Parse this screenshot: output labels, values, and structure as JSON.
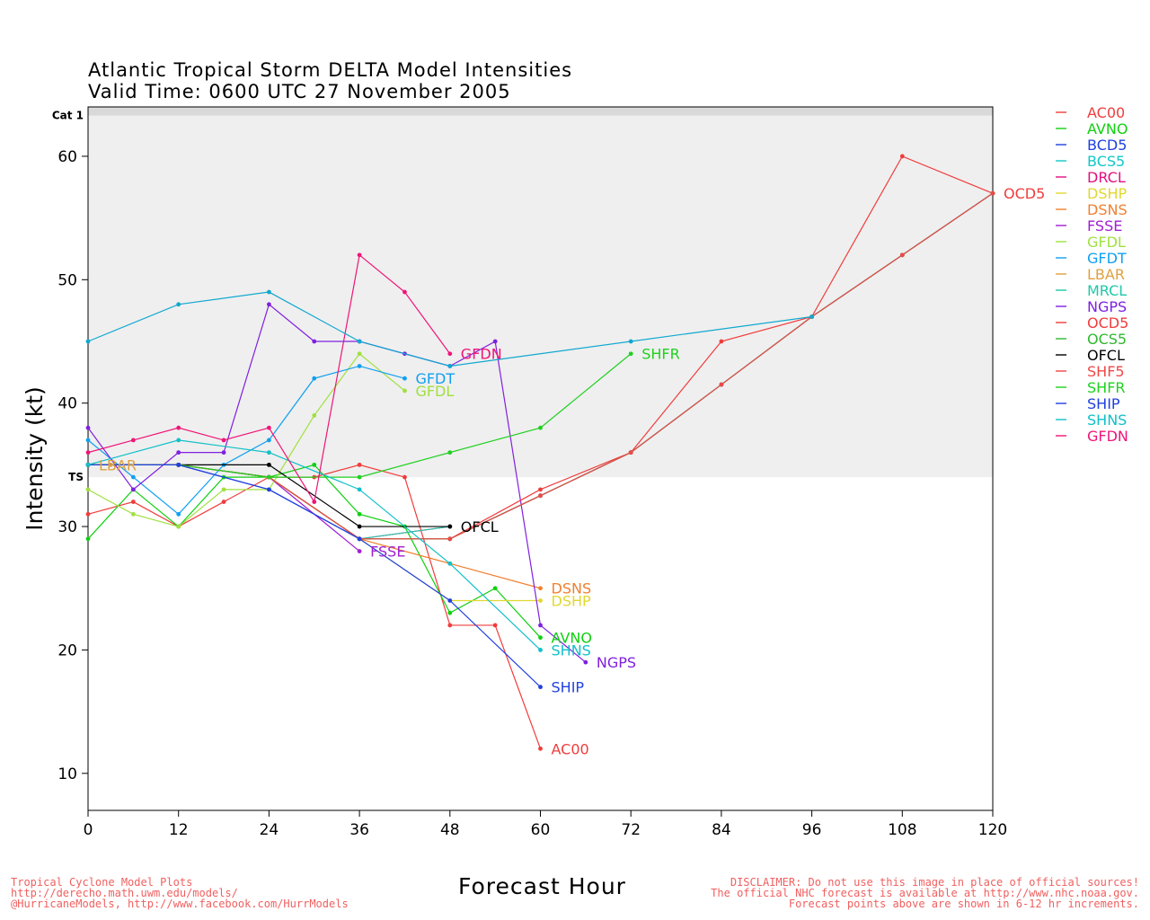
{
  "titles": {
    "line1": "Atlantic Tropical Storm DELTA Model Intensities",
    "line2": "Valid Time: 0600 UTC 27 November 2005"
  },
  "footer_left": [
    "Tropical Cyclone Model Plots",
    "http://derecho.math.uwm.edu/models/",
    "@HurricaneModels, http://www.facebook.com/HurrModels"
  ],
  "footer_right": [
    "DISCLAIMER: Do not use this image in place of official sources!",
    "The official NHC forecast is available at http://www.nhc.noaa.gov.",
    "Forecast points above are shown in 6-12 hr increments."
  ],
  "chart_data": {
    "type": "line",
    "xlabel": "Forecast Hour",
    "ylabel": "Intensity (kt)",
    "xlim": [
      0,
      120
    ],
    "ylim": [
      7,
      64
    ],
    "xticks": [
      0,
      12,
      24,
      36,
      48,
      60,
      72,
      84,
      96,
      108,
      120
    ],
    "yticks": [
      10,
      20,
      30,
      40,
      50,
      60
    ],
    "bands": [
      {
        "label": "TS",
        "from": 34,
        "to": 63.3,
        "color": "#efefef"
      },
      {
        "label": "Cat 1",
        "from": 63.3,
        "to": 64,
        "color": "#d9d9d9"
      }
    ],
    "series": [
      {
        "name": "AC00",
        "color": "#f03c3c",
        "x": [
          0,
          6,
          12,
          18,
          24,
          30,
          36,
          42,
          48,
          54,
          60
        ],
        "y": [
          31,
          32,
          30,
          32,
          34,
          34,
          35,
          34,
          22,
          22,
          12
        ],
        "end_label": "AC00"
      },
      {
        "name": "AVNO",
        "color": "#10d010",
        "x": [
          0,
          6,
          12,
          18,
          24,
          30,
          36,
          42,
          48,
          54,
          60
        ],
        "y": [
          29,
          33,
          30,
          34,
          34,
          35,
          31,
          30,
          23,
          25,
          21
        ],
        "end_label": "AVNO"
      },
      {
        "name": "BCD5",
        "color": "#2040e0",
        "x": [
          0,
          12,
          24,
          36,
          48,
          60,
          72,
          84,
          96,
          108,
          120
        ],
        "y": [
          35,
          35,
          33,
          29,
          29,
          32.5,
          36,
          41.5,
          47,
          52,
          57
        ],
        "end_label": ""
      },
      {
        "name": "BCS5",
        "color": "#10c8c8",
        "x": [
          0,
          12,
          24,
          36,
          48,
          60,
          72,
          84,
          96,
          108,
          120
        ],
        "y": [
          35,
          35,
          34,
          29,
          29,
          32.5,
          36,
          41.5,
          47,
          52,
          57
        ],
        "end_label": ""
      },
      {
        "name": "DRCL",
        "color": "#e01080",
        "x": [
          0,
          12,
          24,
          36,
          48
        ],
        "y": [
          35,
          35,
          34,
          29,
          30
        ],
        "end_label": ""
      },
      {
        "name": "DSHP",
        "color": "#e0d830",
        "x": [
          0,
          12,
          24,
          36,
          48,
          60
        ],
        "y": [
          35,
          35,
          34,
          29,
          24,
          24
        ],
        "end_label": "DSHP"
      },
      {
        "name": "DSNS",
        "color": "#f08030",
        "x": [
          0,
          12,
          24,
          36,
          48,
          60
        ],
        "y": [
          35,
          35,
          34,
          29,
          27,
          25
        ],
        "end_label": "DSNS"
      },
      {
        "name": "FSSE",
        "color": "#a020d0",
        "x": [
          0,
          12,
          24,
          36
        ],
        "y": [
          35,
          35,
          34,
          28
        ],
        "end_label": "FSSE"
      },
      {
        "name": "GFDL",
        "color": "#a0e040",
        "x": [
          0,
          6,
          12,
          18,
          24,
          30,
          36,
          42
        ],
        "y": [
          33,
          31,
          30,
          33,
          33,
          39,
          44,
          41
        ],
        "end_label": "GFDL"
      },
      {
        "name": "GFDT",
        "color": "#10a0f0",
        "x": [
          0,
          6,
          12,
          18,
          24,
          30,
          36,
          42
        ],
        "y": [
          37,
          34,
          31,
          35,
          37,
          42,
          43,
          42
        ],
        "end_label": "GFDT"
      },
      {
        "name": "LBAR",
        "color": "#e0a040",
        "x": [
          0,
          3
        ],
        "y": [
          35,
          35
        ],
        "end_label": "LBAR"
      },
      {
        "name": "MRCL",
        "color": "#20c8a8",
        "x": [
          0,
          12,
          24,
          36,
          48
        ],
        "y": [
          35,
          35,
          34,
          29,
          30
        ],
        "end_label": ""
      },
      {
        "name": "NGPS",
        "color": "#8020e0",
        "x": [
          0,
          6,
          12,
          18,
          24,
          30,
          36,
          42,
          48,
          54,
          60,
          66
        ],
        "y": [
          38,
          33,
          36,
          36,
          48,
          45,
          45,
          44,
          43,
          45,
          22,
          19
        ],
        "end_label": "NGPS"
      },
      {
        "name": "OCD5",
        "color": "#f03c3c",
        "x": [
          0,
          12,
          24,
          36,
          48,
          60,
          72,
          84,
          96,
          108,
          120
        ],
        "y": [
          35,
          35,
          34,
          29,
          29,
          33,
          36,
          45,
          47,
          60,
          57
        ],
        "end_label": "OCD5"
      },
      {
        "name": "OCS5",
        "color": "#30b830",
        "x": [
          0,
          12,
          24,
          36,
          48,
          60,
          72,
          84,
          96,
          108,
          120
        ],
        "y": [
          35,
          35,
          34,
          29,
          29,
          32.5,
          36,
          41.5,
          47,
          52,
          57
        ],
        "end_label": ""
      },
      {
        "name": "OFCL",
        "color": "#000000",
        "x": [
          0,
          12,
          24,
          36,
          48
        ],
        "y": [
          35,
          35,
          35,
          30,
          30
        ],
        "end_label": "OFCL"
      },
      {
        "name": "SHF5",
        "color": "#f04848",
        "x": [
          0,
          12,
          24,
          36,
          48,
          60,
          72,
          84,
          96,
          108,
          120
        ],
        "y": [
          35,
          35,
          34,
          29,
          29,
          32.5,
          36,
          41.5,
          47,
          52,
          57
        ],
        "end_label": ""
      },
      {
        "name": "SHFR",
        "color": "#20d020",
        "x": [
          0,
          12,
          24,
          36,
          48,
          60,
          72
        ],
        "y": [
          35,
          35,
          34,
          34,
          36,
          38,
          44
        ],
        "end_label": "SHFR"
      },
      {
        "name": "SHIP",
        "color": "#2040e0",
        "x": [
          0,
          12,
          24,
          36,
          48,
          60
        ],
        "y": [
          35,
          35,
          33,
          29,
          24,
          17
        ],
        "end_label": "SHIP"
      },
      {
        "name": "SHNS",
        "color": "#10c0c8",
        "x": [
          0,
          12,
          24,
          36,
          48,
          60
        ],
        "y": [
          35,
          37,
          36,
          33,
          27,
          20
        ],
        "end_label": "SHNS"
      },
      {
        "name": "GFDN",
        "color": "#f01478",
        "x": [
          0,
          6,
          12,
          18,
          24,
          30,
          36,
          42,
          48
        ],
        "y": [
          36,
          37,
          38,
          37,
          38,
          32,
          52,
          49,
          44
        ],
        "end_label": "GFDN"
      },
      {
        "name": "",
        "color": "#10a8d0",
        "x": [
          0,
          12,
          24,
          36,
          48,
          72,
          96
        ],
        "y": [
          45,
          48,
          49,
          45,
          43,
          45,
          47
        ],
        "end_label": ""
      }
    ],
    "end_label_offsets": {
      "OFCL": [
        0,
        0
      ],
      "DRCL": [
        0,
        0
      ],
      "MRCL": [
        0,
        0
      ]
    },
    "right_edge_label": "OCD5"
  }
}
